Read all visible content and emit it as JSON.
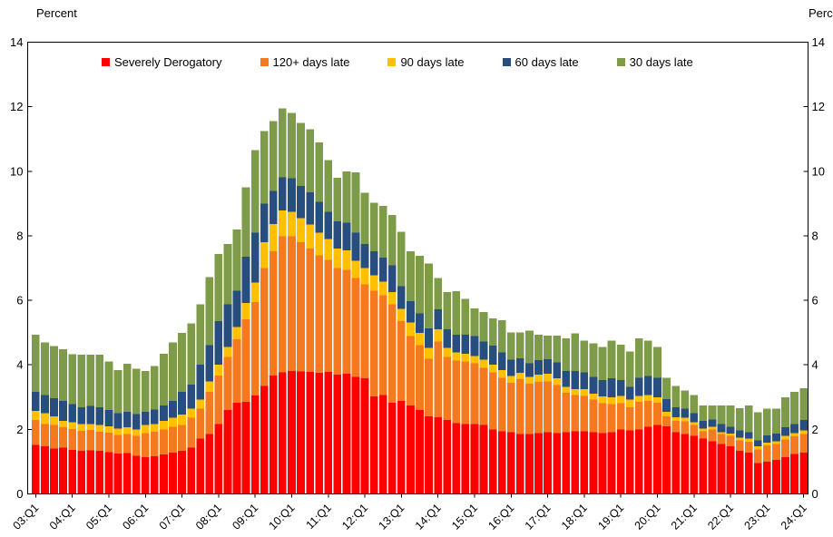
{
  "y_axis_title_left": "Percent",
  "y_axis_title_right": "Percent",
  "legend": [
    {
      "label": "Severely Derogatory",
      "color": "#FE0000"
    },
    {
      "label": "120+ days late",
      "color": "#F57A1F"
    },
    {
      "label": "90 days late",
      "color": "#FFC000"
    },
    {
      "label": "60 days late",
      "color": "#284E80"
    },
    {
      "label": "30 days late",
      "color": "#7E9B49"
    }
  ],
  "chart_data": {
    "type": "bar",
    "stacked": true,
    "title": "",
    "xlabel": "",
    "ylabel_left": "Percent",
    "ylabel_right": "Percent",
    "ylim": [
      0,
      14
    ],
    "ytick_step": 2,
    "grid": false,
    "legend_position": "top-inside",
    "categories": [
      "03:Q1",
      "03:Q2",
      "03:Q3",
      "03:Q4",
      "04:Q1",
      "04:Q2",
      "04:Q3",
      "04:Q4",
      "05:Q1",
      "05:Q2",
      "05:Q3",
      "05:Q4",
      "06:Q1",
      "06:Q2",
      "06:Q3",
      "06:Q4",
      "07:Q1",
      "07:Q2",
      "07:Q3",
      "07:Q4",
      "08:Q1",
      "08:Q2",
      "08:Q3",
      "08:Q4",
      "09:Q1",
      "09:Q2",
      "09:Q3",
      "09:Q4",
      "10:Q1",
      "10:Q2",
      "10:Q3",
      "10:Q4",
      "11:Q1",
      "11:Q2",
      "11:Q3",
      "11:Q4",
      "12:Q1",
      "12:Q2",
      "12:Q3",
      "12:Q4",
      "13:Q1",
      "13:Q2",
      "13:Q3",
      "13:Q4",
      "14:Q1",
      "14:Q2",
      "14:Q3",
      "14:Q4",
      "15:Q1",
      "15:Q2",
      "15:Q3",
      "15:Q4",
      "16:Q1",
      "16:Q2",
      "16:Q3",
      "16:Q4",
      "17:Q1",
      "17:Q2",
      "17:Q3",
      "17:Q4",
      "18:Q1",
      "18:Q2",
      "18:Q3",
      "18:Q4",
      "19:Q1",
      "19:Q2",
      "19:Q3",
      "19:Q4",
      "20:Q1",
      "20:Q2",
      "20:Q3",
      "20:Q4",
      "21:Q1",
      "21:Q2",
      "21:Q3",
      "21:Q4",
      "22:Q1",
      "22:Q2",
      "22:Q3",
      "22:Q4",
      "23:Q1",
      "23:Q2",
      "23:Q3",
      "23:Q4",
      "24:Q1"
    ],
    "x_tick_labels": [
      "03:Q1",
      "04:Q1",
      "05:Q1",
      "06:Q1",
      "07:Q1",
      "08:Q1",
      "09:Q1",
      "10:Q1",
      "11:Q1",
      "12:Q1",
      "13:Q1",
      "14:Q1",
      "15:Q1",
      "16:Q1",
      "17:Q1",
      "18:Q1",
      "19:Q1",
      "20:Q1",
      "21:Q1",
      "22:Q1",
      "23:Q1",
      "24:Q1"
    ],
    "series": [
      {
        "name": "Severely Derogatory",
        "color": "#FE0000",
        "values": [
          1.52,
          1.47,
          1.41,
          1.43,
          1.36,
          1.33,
          1.35,
          1.33,
          1.3,
          1.25,
          1.26,
          1.18,
          1.14,
          1.16,
          1.22,
          1.28,
          1.33,
          1.43,
          1.71,
          1.85,
          2.17,
          2.6,
          2.83,
          2.85,
          3.05,
          3.35,
          3.67,
          3.77,
          3.81,
          3.8,
          3.78,
          3.75,
          3.78,
          3.7,
          3.72,
          3.63,
          3.58,
          3.02,
          3.06,
          2.83,
          2.88,
          2.74,
          2.6,
          2.41,
          2.38,
          2.29,
          2.19,
          2.17,
          2.16,
          2.13,
          2.0,
          1.94,
          1.91,
          1.85,
          1.85,
          1.89,
          1.91,
          1.89,
          1.91,
          1.94,
          1.94,
          1.91,
          1.89,
          1.91,
          1.99,
          1.97,
          2.0,
          2.08,
          2.13,
          2.1,
          1.91,
          1.85,
          1.8,
          1.71,
          1.63,
          1.54,
          1.47,
          1.33,
          1.28,
          0.96,
          1.0,
          1.05,
          1.14,
          1.24,
          1.28
        ]
      },
      {
        "name": "120+ days late",
        "color": "#F57A1F",
        "values": [
          0.77,
          0.7,
          0.72,
          0.63,
          0.65,
          0.63,
          0.63,
          0.6,
          0.6,
          0.58,
          0.59,
          0.62,
          0.75,
          0.76,
          0.78,
          0.8,
          0.8,
          0.93,
          0.93,
          1.31,
          1.5,
          1.64,
          1.97,
          2.56,
          2.9,
          3.65,
          3.85,
          4.21,
          4.17,
          4.0,
          3.82,
          3.65,
          3.47,
          3.3,
          3.23,
          3.06,
          2.91,
          3.28,
          3.1,
          3.05,
          2.48,
          2.15,
          2.01,
          1.78,
          2.34,
          1.95,
          1.94,
          1.93,
          1.89,
          1.78,
          1.77,
          1.66,
          1.53,
          1.7,
          1.56,
          1.58,
          1.58,
          1.48,
          1.22,
          1.12,
          1.1,
          1.01,
          0.92,
          0.87,
          0.82,
          0.72,
          0.85,
          0.8,
          0.7,
          0.31,
          0.36,
          0.4,
          0.33,
          0.23,
          0.37,
          0.31,
          0.33,
          0.33,
          0.33,
          0.42,
          0.5,
          0.49,
          0.55,
          0.54,
          0.57
        ]
      },
      {
        "name": "90 days late",
        "color": "#FFC000",
        "values": [
          0.28,
          0.33,
          0.28,
          0.21,
          0.21,
          0.21,
          0.19,
          0.2,
          0.2,
          0.2,
          0.21,
          0.2,
          0.24,
          0.24,
          0.26,
          0.28,
          0.33,
          0.28,
          0.28,
          0.33,
          0.33,
          0.32,
          0.37,
          0.51,
          0.6,
          0.8,
          0.84,
          0.8,
          0.77,
          0.75,
          0.75,
          0.7,
          0.65,
          0.6,
          0.6,
          0.53,
          0.51,
          0.47,
          0.42,
          0.37,
          0.38,
          0.42,
          0.38,
          0.33,
          0.38,
          0.28,
          0.25,
          0.25,
          0.23,
          0.25,
          0.23,
          0.24,
          0.22,
          0.2,
          0.22,
          0.22,
          0.23,
          0.21,
          0.19,
          0.19,
          0.21,
          0.19,
          0.21,
          0.22,
          0.23,
          0.23,
          0.19,
          0.18,
          0.17,
          0.14,
          0.11,
          0.11,
          0.09,
          0.09,
          0.08,
          0.06,
          0.07,
          0.09,
          0.1,
          0.09,
          0.09,
          0.09,
          0.11,
          0.11,
          0.12
        ]
      },
      {
        "name": "60 days late",
        "color": "#284E80",
        "values": [
          0.59,
          0.56,
          0.56,
          0.61,
          0.56,
          0.52,
          0.55,
          0.56,
          0.5,
          0.47,
          0.49,
          0.48,
          0.42,
          0.46,
          0.48,
          0.52,
          0.7,
          0.75,
          1.08,
          1.12,
          1.36,
          1.32,
          1.13,
          1.43,
          1.55,
          1.2,
          1.03,
          1.03,
          1.03,
          1.0,
          1.0,
          0.95,
          0.85,
          0.85,
          0.85,
          0.88,
          0.75,
          0.75,
          0.75,
          0.84,
          0.7,
          0.66,
          0.6,
          0.61,
          0.62,
          0.58,
          0.56,
          0.59,
          0.61,
          0.56,
          0.59,
          0.54,
          0.5,
          0.45,
          0.42,
          0.45,
          0.45,
          0.49,
          0.49,
          0.56,
          0.52,
          0.52,
          0.51,
          0.58,
          0.49,
          0.4,
          0.56,
          0.6,
          0.6,
          0.39,
          0.31,
          0.28,
          0.28,
          0.24,
          0.23,
          0.26,
          0.21,
          0.22,
          0.2,
          0.19,
          0.23,
          0.24,
          0.26,
          0.28,
          0.32
        ]
      },
      {
        "name": "30 days late",
        "color": "#7E9B49",
        "values": [
          1.78,
          1.64,
          1.61,
          1.61,
          1.55,
          1.62,
          1.59,
          1.62,
          1.5,
          1.34,
          1.48,
          1.4,
          1.26,
          1.35,
          1.61,
          1.82,
          1.83,
          1.9,
          1.88,
          2.11,
          2.08,
          1.87,
          1.89,
          2.15,
          2.55,
          2.25,
          2.16,
          2.14,
          2.03,
          1.95,
          1.95,
          1.85,
          1.6,
          1.35,
          1.6,
          1.87,
          1.59,
          1.51,
          1.59,
          1.55,
          1.68,
          1.55,
          1.79,
          2.01,
          0.97,
          1.15,
          1.34,
          1.1,
          0.86,
          0.92,
          0.85,
          1.0,
          0.84,
          0.8,
          1.01,
          0.8,
          0.74,
          0.84,
          1.01,
          1.16,
          0.98,
          1.03,
          1.03,
          1.17,
          1.1,
          1.09,
          1.22,
          1.09,
          0.96,
          0.66,
          0.66,
          0.57,
          0.56,
          0.47,
          0.43,
          0.57,
          0.66,
          0.69,
          0.83,
          0.87,
          0.82,
          0.77,
          0.94,
          0.99,
          0.99
        ]
      }
    ]
  }
}
